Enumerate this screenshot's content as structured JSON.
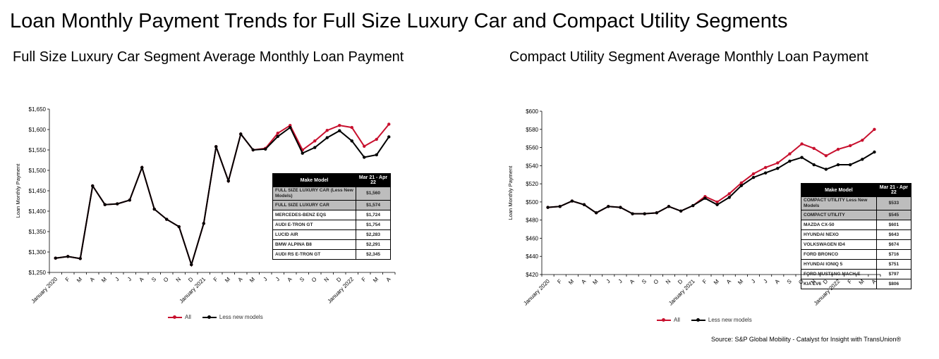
{
  "page_title": "Loan Monthly Payment Trends for Full Size Luxury Car and Compact Utility Segments",
  "source": "Source: S&P Global Mobility - Catalyst for Insight with TransUnion®",
  "colors": {
    "all": "#c8102e",
    "less_new": "#000000"
  },
  "chart_data": [
    {
      "type": "line",
      "title": "Full Size Luxury Car Segment Average Monthly Loan Payment",
      "ylabel": "Loan Monthly Payment",
      "xlabel": "",
      "ylim": [
        1250,
        1650
      ],
      "yticks": [
        "$1,250",
        "$1,300",
        "$1,350",
        "$1,400",
        "$1,450",
        "$1,500",
        "$1,550",
        "$1,600",
        "$1,650"
      ],
      "ytick_values": [
        1250,
        1300,
        1350,
        1400,
        1450,
        1500,
        1550,
        1600,
        1650
      ],
      "categories": [
        "January 2020",
        "F",
        "M",
        "A",
        "M",
        "J",
        "J",
        "A",
        "S",
        "O",
        "N",
        "D",
        "January 2021",
        "F",
        "M",
        "A",
        "M",
        "J",
        "J",
        "A",
        "S",
        "O",
        "N",
        "D",
        "January 2022",
        "F",
        "M",
        "A"
      ],
      "series": [
        {
          "name": "All",
          "color": "#c8102e",
          "values": [
            1285,
            1289,
            1284,
            1462,
            1416,
            1418,
            1427,
            1507,
            1405,
            1380,
            1362,
            1269,
            1370,
            1558,
            1474,
            1589,
            1550,
            1554,
            1591,
            1610,
            1550,
            1572,
            1598,
            1610,
            1605,
            1559,
            1576,
            1613
          ]
        },
        {
          "name": "Less new models",
          "color": "#000000",
          "values": [
            1285,
            1289,
            1284,
            1462,
            1416,
            1418,
            1427,
            1507,
            1405,
            1380,
            1362,
            1269,
            1370,
            1558,
            1474,
            1589,
            1550,
            1552,
            1583,
            1605,
            1542,
            1556,
            1580,
            1597,
            1572,
            1532,
            1538,
            1582
          ]
        }
      ],
      "legend": "bottom",
      "table": {
        "headers": [
          "Make Model",
          "Mar 21 - Apr 22"
        ],
        "rows": [
          {
            "model": "FULL SIZE LUXURY CAR (Less New Models)",
            "value": "$1,560",
            "shaded": true
          },
          {
            "model": "FULL SIZE LUXURY CAR",
            "value": "$1,574",
            "shaded": true
          },
          {
            "model": "MERCEDES-BENZ EQS",
            "value": "$1,724"
          },
          {
            "model": "AUDI E-TRON GT",
            "value": "$1,754"
          },
          {
            "model": "LUCID AIR",
            "value": "$2,283"
          },
          {
            "model": "BMW ALPINA B8",
            "value": "$2,291"
          },
          {
            "model": "AUDI RS E-TRON GT",
            "value": "$2,345"
          }
        ]
      }
    },
    {
      "type": "line",
      "title": "Compact Utility Segment Average Monthly Loan Payment",
      "ylabel": "Loan Monthly Payment",
      "xlabel": "",
      "ylim": [
        420,
        600
      ],
      "yticks": [
        "$420",
        "$440",
        "$460",
        "$480",
        "$500",
        "$520",
        "$540",
        "$560",
        "$580",
        "$600"
      ],
      "ytick_values": [
        420,
        440,
        460,
        480,
        500,
        520,
        540,
        560,
        580,
        600
      ],
      "categories": [
        "January 2020",
        "F",
        "M",
        "A",
        "M",
        "J",
        "J",
        "A",
        "S",
        "O",
        "N",
        "D",
        "January 2021",
        "F",
        "M",
        "A",
        "M",
        "J",
        "J",
        "A",
        "S",
        "O",
        "N",
        "D",
        "January 2022",
        "F",
        "M",
        "A"
      ],
      "series": [
        {
          "name": "All",
          "color": "#c8102e",
          "values": [
            494,
            495,
            501,
            497,
            488,
            495,
            494,
            487,
            487,
            488,
            495,
            490,
            496,
            506,
            500,
            509,
            521,
            531,
            538,
            543,
            553,
            564,
            559,
            551,
            558,
            562,
            568,
            580
          ]
        },
        {
          "name": "Less new models",
          "color": "#000000",
          "values": [
            494,
            495,
            501,
            497,
            488,
            495,
            494,
            487,
            487,
            488,
            495,
            490,
            496,
            504,
            497,
            505,
            518,
            527,
            532,
            537,
            545,
            549,
            541,
            536,
            541,
            541,
            547,
            555
          ]
        }
      ],
      "legend": "bottom",
      "table": {
        "headers": [
          "Make Model",
          "Mar 21 - Apr 22"
        ],
        "rows": [
          {
            "model": "COMPACT UTILITY Less New Models",
            "value": "$533",
            "shaded": true
          },
          {
            "model": "COMPACT UTILITY",
            "value": "$545",
            "shaded": true
          },
          {
            "model": "MAZDA CX-50",
            "value": "$601"
          },
          {
            "model": "HYUNDAI NEXO",
            "value": "$643"
          },
          {
            "model": "VOLKSWAGEN ID4",
            "value": "$674"
          },
          {
            "model": "FORD BRONCO",
            "value": "$716"
          },
          {
            "model": "HYUNDAI IONIQ 5",
            "value": "$751"
          },
          {
            "model": "FORD MUSTANG MACH-E",
            "value": "$797"
          },
          {
            "model": "KIA EV6",
            "value": "$806"
          }
        ]
      }
    }
  ]
}
